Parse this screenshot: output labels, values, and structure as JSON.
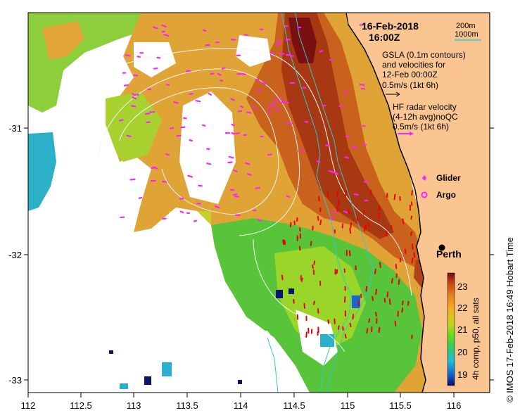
{
  "map": {
    "date": "16-Feb-2018",
    "time": "16:00Z",
    "depth_legend": [
      "200m",
      "1000m"
    ],
    "gsla_text": [
      "GSLA (0.1m contours)",
      "and velocities for",
      "12-Feb 00:00Z",
      "0.5m/s (1kt 6h)"
    ],
    "hf_text": [
      "HF radar velocity",
      "(4-12h avg)noQC",
      "0.5m/s (1kt 6h)"
    ],
    "legend": {
      "glider": "Glider",
      "argo": "Argo"
    },
    "city": "Perth",
    "colorbar": {
      "ticks": [
        "23",
        "22",
        "21",
        "20",
        "19"
      ],
      "label": "4h comp, p50, all sats"
    },
    "credit": "© IMOS 17-Feb-2018 16:49 Hobart Time",
    "x_ticks": [
      "112",
      "112.5",
      "113",
      "113.5",
      "114",
      "114.5",
      "115",
      "115.5",
      "116"
    ],
    "y_ticks": [
      "-31",
      "-32",
      "-33"
    ],
    "colors": {
      "land": "#fac591",
      "coast": "#000000",
      "isobath": "#2fc9c9",
      "gsla_contour": "#f4f4f4",
      "glider_argo": "#ff22ff",
      "radar_arrows": "#ee0000"
    }
  }
}
